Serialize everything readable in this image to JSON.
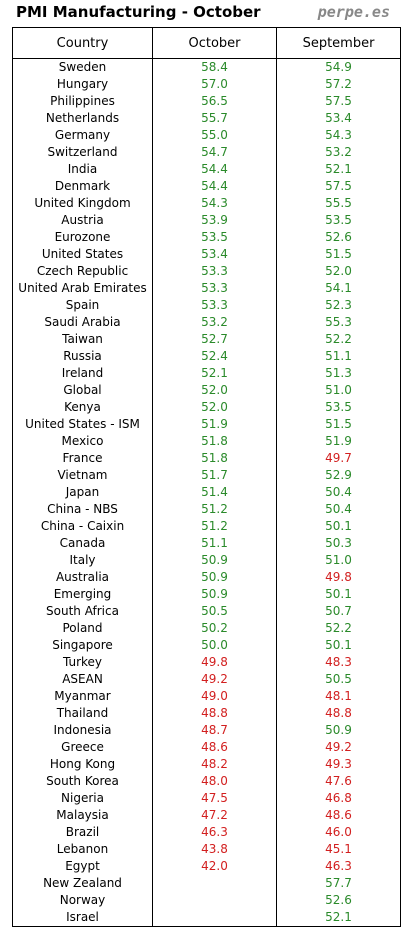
{
  "title": "PMI Manufacturing - October",
  "site": "perpe.es",
  "colors": {
    "above50": "#2a8a2a",
    "below50": "#d21f1f"
  },
  "chart_data": {
    "type": "table",
    "headers": [
      "Country",
      "October",
      "September"
    ],
    "rows": [
      {
        "country": "Sweden",
        "october": "58.4",
        "september": "54.9"
      },
      {
        "country": "Hungary",
        "october": "57.0",
        "september": "57.2"
      },
      {
        "country": "Philippines",
        "october": "56.5",
        "september": "57.5"
      },
      {
        "country": "Netherlands",
        "october": "55.7",
        "september": "53.4"
      },
      {
        "country": "Germany",
        "october": "55.0",
        "september": "54.3"
      },
      {
        "country": "Switzerland",
        "october": "54.7",
        "september": "53.2"
      },
      {
        "country": "India",
        "october": "54.4",
        "september": "52.1"
      },
      {
        "country": "Denmark",
        "october": "54.4",
        "september": "57.5"
      },
      {
        "country": "United Kingdom",
        "october": "54.3",
        "september": "55.5"
      },
      {
        "country": "Austria",
        "october": "53.9",
        "september": "53.5"
      },
      {
        "country": "Eurozone",
        "october": "53.5",
        "september": "52.6"
      },
      {
        "country": "United States",
        "october": "53.4",
        "september": "51.5"
      },
      {
        "country": "Czech Republic",
        "october": "53.3",
        "september": "52.0"
      },
      {
        "country": "United Arab Emirates",
        "october": "53.3",
        "september": "54.1"
      },
      {
        "country": "Spain",
        "october": "53.3",
        "september": "52.3"
      },
      {
        "country": "Saudi Arabia",
        "october": "53.2",
        "september": "55.3"
      },
      {
        "country": "Taiwan",
        "october": "52.7",
        "september": "52.2"
      },
      {
        "country": "Russia",
        "october": "52.4",
        "september": "51.1"
      },
      {
        "country": "Ireland",
        "october": "52.1",
        "september": "51.3"
      },
      {
        "country": "Global",
        "october": "52.0",
        "september": "51.0"
      },
      {
        "country": "Kenya",
        "october": "52.0",
        "september": "53.5"
      },
      {
        "country": "United States - ISM",
        "october": "51.9",
        "september": "51.5"
      },
      {
        "country": "Mexico",
        "october": "51.8",
        "september": "51.9"
      },
      {
        "country": "France",
        "october": "51.8",
        "september": "49.7"
      },
      {
        "country": "Vietnam",
        "october": "51.7",
        "september": "52.9"
      },
      {
        "country": "Japan",
        "october": "51.4",
        "september": "50.4"
      },
      {
        "country": "China - NBS",
        "october": "51.2",
        "september": "50.4"
      },
      {
        "country": "China - Caixin",
        "october": "51.2",
        "september": "50.1"
      },
      {
        "country": "Canada",
        "october": "51.1",
        "september": "50.3"
      },
      {
        "country": "Italy",
        "october": "50.9",
        "september": "51.0"
      },
      {
        "country": "Australia",
        "october": "50.9",
        "september": "49.8"
      },
      {
        "country": "Emerging",
        "october": "50.9",
        "september": "50.1"
      },
      {
        "country": "South Africa",
        "october": "50.5",
        "september": "50.7"
      },
      {
        "country": "Poland",
        "october": "50.2",
        "september": "52.2"
      },
      {
        "country": "Singapore",
        "october": "50.0",
        "september": "50.1"
      },
      {
        "country": "Turkey",
        "october": "49.8",
        "september": "48.3"
      },
      {
        "country": "ASEAN",
        "october": "49.2",
        "september": "50.5"
      },
      {
        "country": "Myanmar",
        "october": "49.0",
        "september": "48.1"
      },
      {
        "country": "Thailand",
        "october": "48.8",
        "september": "48.8"
      },
      {
        "country": "Indonesia",
        "october": "48.7",
        "september": "50.9"
      },
      {
        "country": "Greece",
        "october": "48.6",
        "september": "49.2"
      },
      {
        "country": "Hong Kong",
        "october": "48.2",
        "september": "49.3"
      },
      {
        "country": "South Korea",
        "october": "48.0",
        "september": "47.6"
      },
      {
        "country": "Nigeria",
        "october": "47.5",
        "september": "46.8"
      },
      {
        "country": "Malaysia",
        "october": "47.2",
        "september": "48.6"
      },
      {
        "country": "Brazil",
        "october": "46.3",
        "september": "46.0"
      },
      {
        "country": "Lebanon",
        "october": "43.8",
        "september": "45.1"
      },
      {
        "country": "Egypt",
        "october": "42.0",
        "september": "46.3"
      },
      {
        "country": "New Zealand",
        "october": "",
        "september": "57.7"
      },
      {
        "country": "Norway",
        "october": "",
        "september": "52.6"
      },
      {
        "country": "Israel",
        "october": "",
        "september": "52.1"
      }
    ]
  }
}
